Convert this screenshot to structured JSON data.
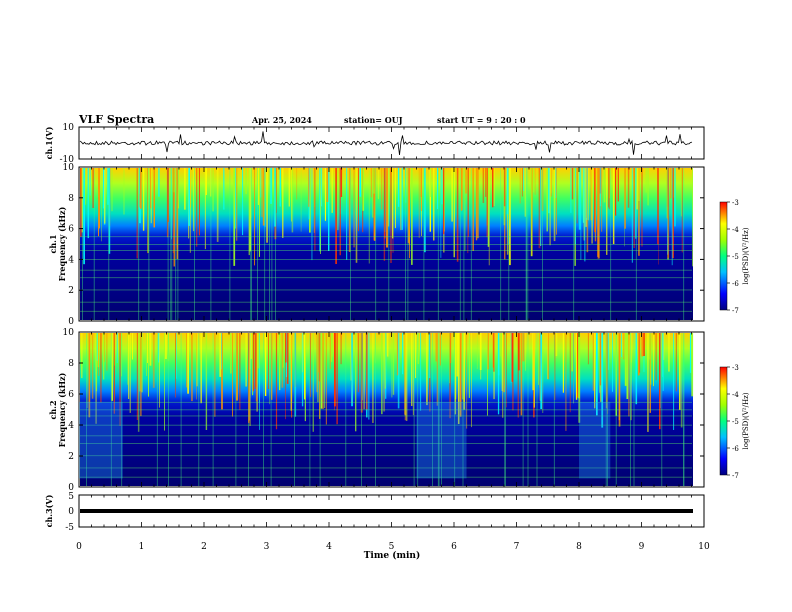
{
  "header": {
    "title": "VLF Spectra",
    "date": "Apr. 25, 2024",
    "station": "station= OUJ",
    "start": "start  UT =   9 : 20 : 0"
  },
  "chart_data": [
    {
      "type": "line",
      "ylabel": "ch.1(V)",
      "ylim": [
        -10,
        10
      ],
      "yticks": [
        "10",
        "-10"
      ],
      "xlim": [
        0,
        10
      ]
    },
    {
      "type": "heatmap",
      "ylabel_top": "ch.1",
      "ylabel": "Frequency (kHz)",
      "ylim": [
        0,
        10
      ],
      "yticks": [
        "0",
        "2",
        "4",
        "6",
        "8",
        "10"
      ],
      "xlim": [
        0,
        10
      ],
      "colorbar": {
        "label": "log(PSD)(V²/Hz)",
        "ticks": [
          "-3",
          "-4",
          "-5",
          "-6",
          "-7"
        ],
        "range": [
          -7,
          -3
        ]
      }
    },
    {
      "type": "heatmap",
      "ylabel_top": "ch.2",
      "ylabel": "Frequency (kHz)",
      "ylim": [
        0,
        10
      ],
      "yticks": [
        "0",
        "2",
        "4",
        "6",
        "8",
        "10"
      ],
      "xlim": [
        0,
        10
      ],
      "colorbar": {
        "label": "log(PSD)(V²/Hz)",
        "ticks": [
          "-3",
          "-4",
          "-5",
          "-6",
          "-7"
        ],
        "range": [
          -7,
          -3
        ]
      }
    },
    {
      "type": "line",
      "ylabel": "ch.3(V)",
      "ylim": [
        -5,
        5
      ],
      "yticks": [
        "5",
        "0",
        "-5"
      ],
      "xlim": [
        0,
        10
      ],
      "xlabel": "Time (min)",
      "xticks": [
        "0",
        "1",
        "2",
        "3",
        "4",
        "5",
        "6",
        "7",
        "8",
        "9",
        "10"
      ]
    }
  ],
  "colors": {
    "low": "#00007f",
    "mid": "#00ffff",
    "high": "#ffff00",
    "peak": "#ff0000"
  }
}
